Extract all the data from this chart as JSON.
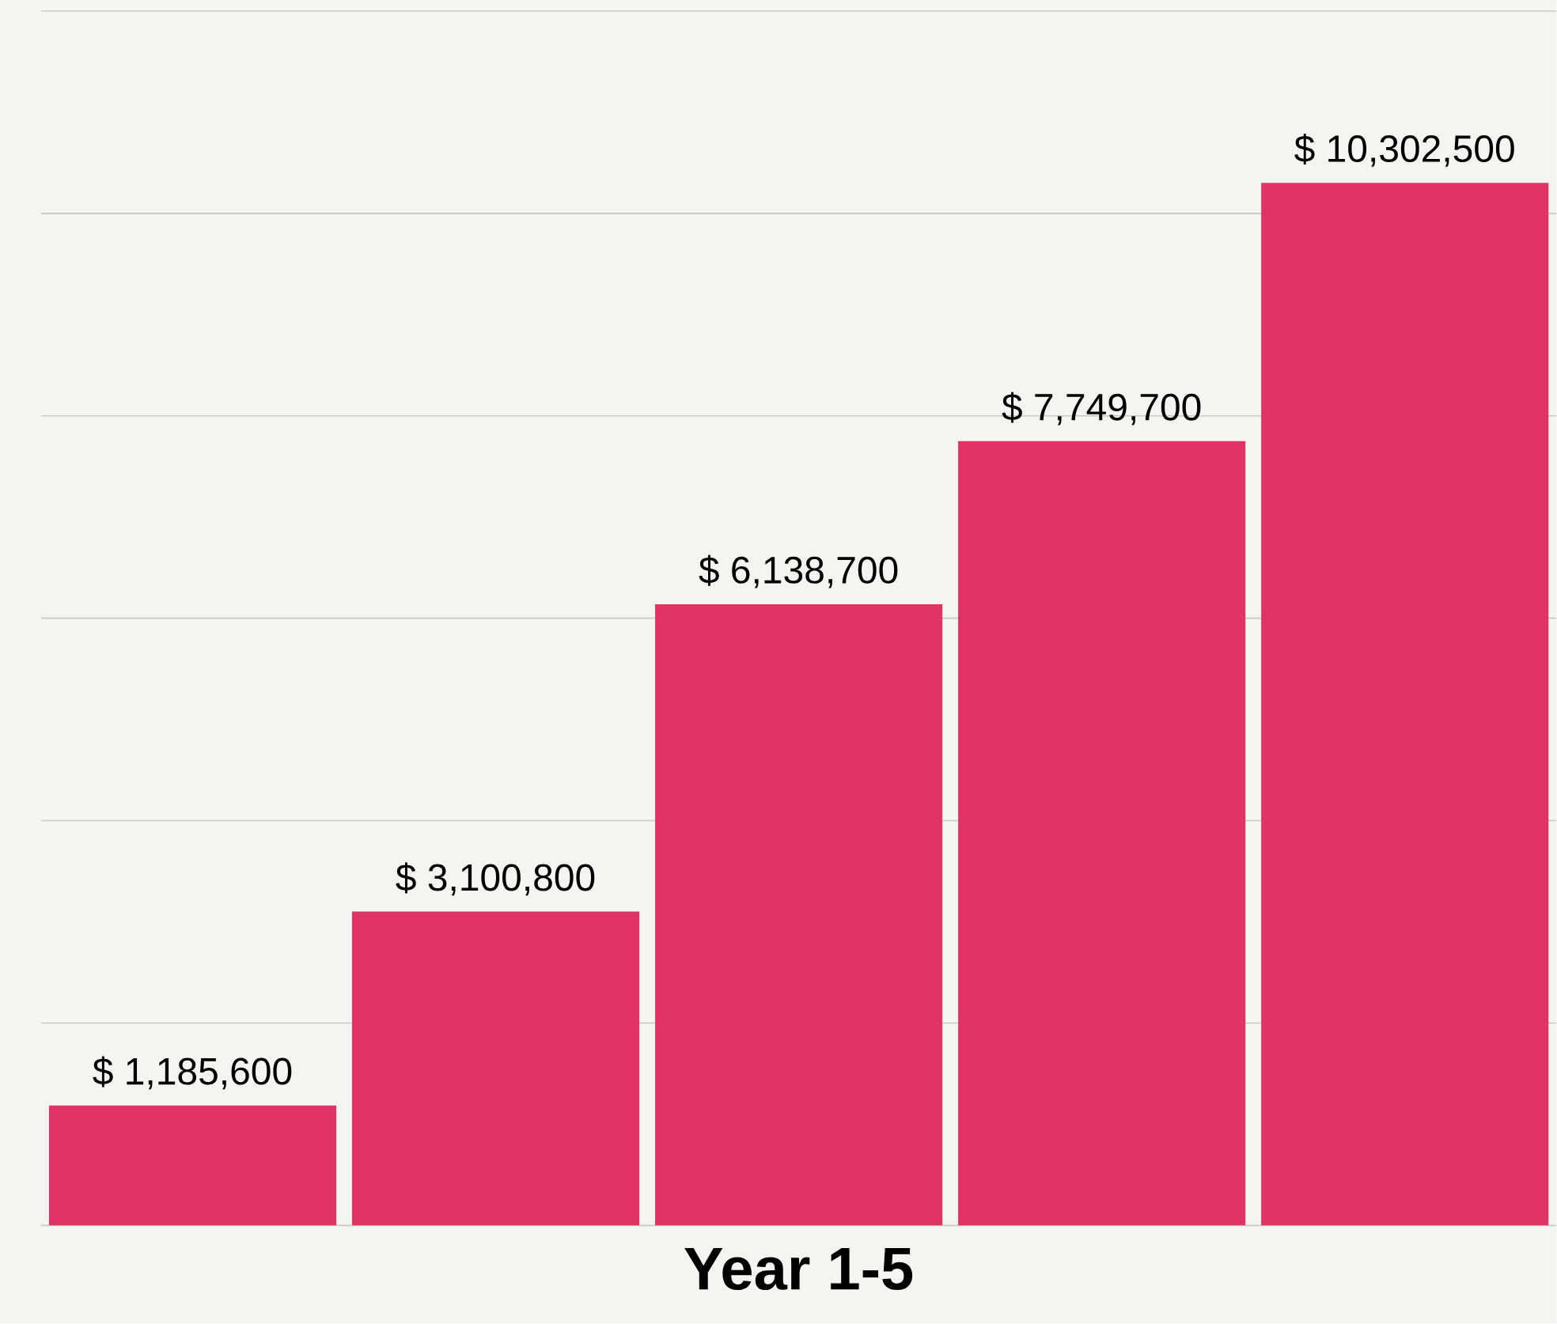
{
  "chart_data": {
    "type": "bar",
    "xlabel": "Year 1-5",
    "categories": [
      null,
      null,
      null,
      null,
      null
    ],
    "values": [
      1185600,
      3100800,
      6138700,
      7749700,
      10302500
    ],
    "value_labels": [
      "$ 1,185,600",
      "$ 3,100,800",
      "$ 6,138,700",
      "$ 7,749,700",
      "$ 10,302,500"
    ],
    "color": "#de3363",
    "ylim": [
      0,
      12000000
    ],
    "yticks": [
      {
        "value": 0,
        "label": null
      },
      {
        "value": 2000000,
        "label": null
      },
      {
        "value": 4000000,
        "label": null
      },
      {
        "value": 6000000,
        "label": null
      },
      {
        "value": 8000000,
        "label": null
      },
      {
        "value": 10000000,
        "label": null
      },
      {
        "value": 12000000,
        "label": null
      }
    ],
    "grid": "y"
  }
}
